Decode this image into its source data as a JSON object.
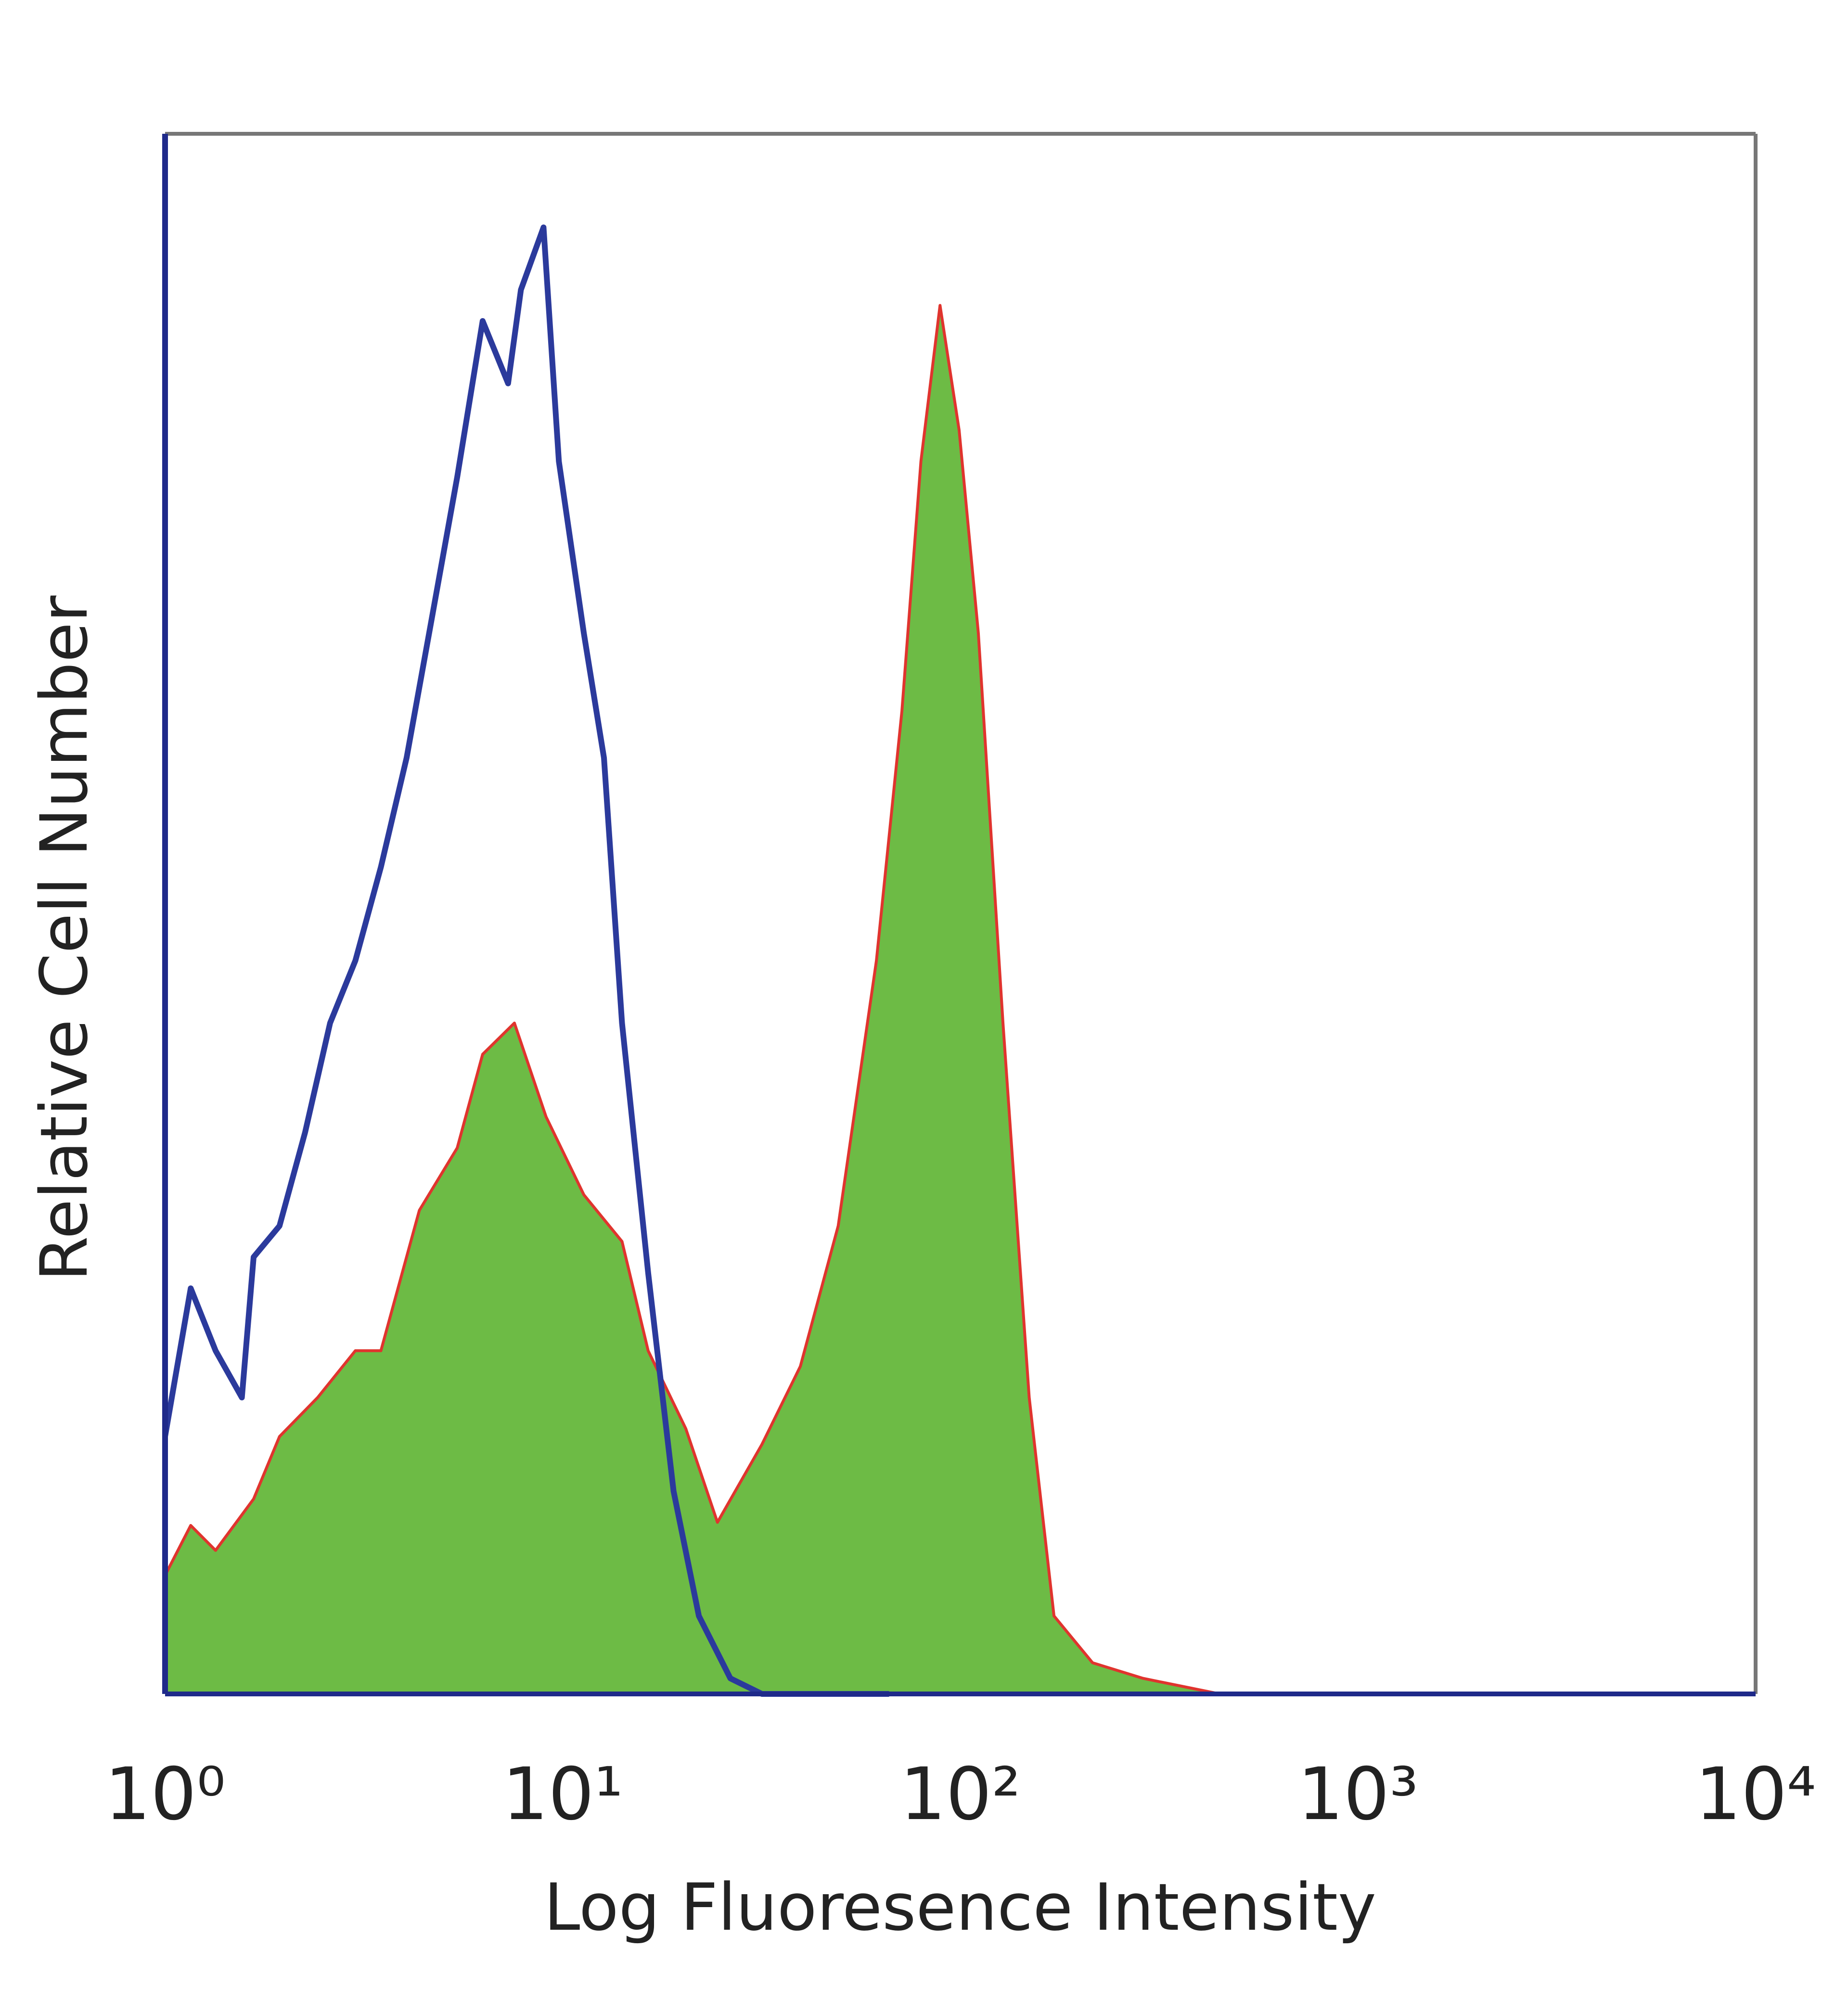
{
  "chart_data": {
    "type": "histogram-overlay",
    "xlabel": "Log Fluoresence Intensity",
    "ylabel": "Relative Cell Number",
    "xscale": "log",
    "xlim": [
      1,
      10000
    ],
    "xticks": [
      {
        "value": 1,
        "label": "10⁰"
      },
      {
        "value": 10,
        "label": "10¹"
      },
      {
        "value": 100,
        "label": "10²"
      },
      {
        "value": 1000,
        "label": "10³"
      },
      {
        "value": 10000,
        "label": "10⁴"
      }
    ],
    "ylim": [
      0,
      100
    ],
    "series": [
      {
        "color": "#2b3a9c",
        "fill": false,
        "x": [
          1,
          1.16,
          1.34,
          1.56,
          1.67,
          1.94,
          2.25,
          2.6,
          3.01,
          3.49,
          4.05,
          4.69,
          5.43,
          6.29,
          7.29,
          7.85,
          8.95,
          9.78,
          11.3,
          12.7,
          14.1,
          16.4,
          19,
          22,
          26.4,
          31.7,
          66.2
        ],
        "values": [
          16.5,
          26,
          22,
          19,
          28,
          30,
          36,
          43,
          47,
          53,
          60,
          69,
          78,
          88,
          84,
          90,
          94,
          79,
          68,
          60,
          43,
          27,
          13,
          5,
          1,
          0,
          0
        ]
      },
      {
        "color": "#e0342e",
        "fill": "#6dbb45",
        "x": [
          1,
          1.16,
          1.34,
          1.67,
          1.94,
          2.42,
          3.01,
          3.49,
          4.36,
          5.43,
          6.29,
          7.56,
          9.08,
          11.3,
          14.1,
          16.4,
          20.4,
          24.5,
          31.7,
          39.6,
          49.3,
          61.5,
          71.3,
          79.6,
          88.9,
          99.3,
          111,
          128,
          149,
          172,
          215,
          288,
          449,
          602
        ],
        "values": [
          7.6,
          10.8,
          9.2,
          12.5,
          16.5,
          19,
          22,
          22,
          31,
          35,
          41,
          43,
          37,
          32,
          29,
          22,
          17,
          11,
          16,
          21,
          30,
          47,
          63,
          79,
          89,
          81,
          68,
          43,
          19,
          5,
          2,
          1,
          0,
          0
        ]
      }
    ]
  }
}
